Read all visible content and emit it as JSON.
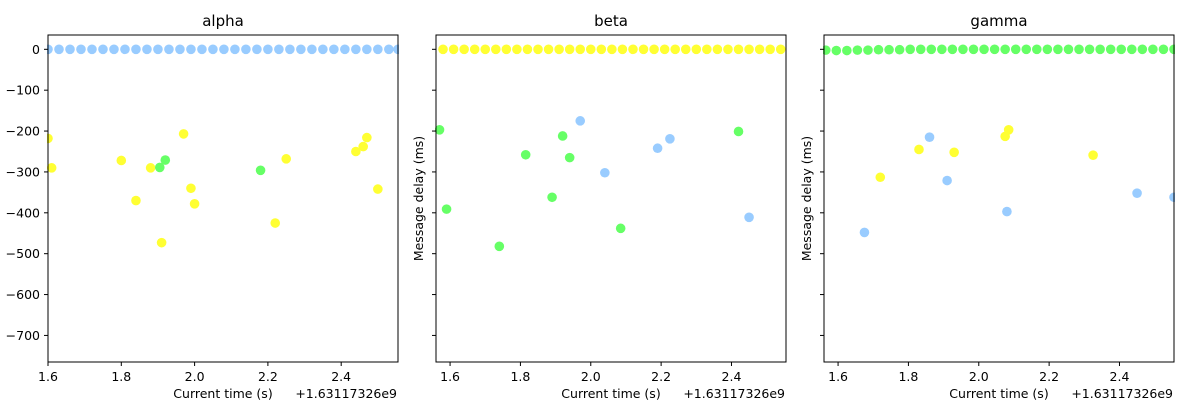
{
  "chart_data": [
    {
      "type": "scatter",
      "title": "alpha",
      "xlabel": "Current time (s)",
      "ylabel": "",
      "x_offset_label": "+1.63117326e9",
      "xlim": [
        1.6,
        2.555
      ],
      "ylim": [
        -765,
        35
      ],
      "xticks": [
        1.6,
        1.8,
        2.0,
        2.2,
        2.4
      ],
      "xtick_labels": [
        "1.6",
        "1.8",
        "2.0",
        "2.2",
        "2.4"
      ],
      "yticks": [
        0,
        -100,
        -200,
        -300,
        -400,
        -500,
        -600,
        -700
      ],
      "ytick_labels": [
        "0",
        "−100",
        "−200",
        "−300",
        "−400",
        "−500",
        "−600",
        "−700"
      ],
      "show_ytick_labels": true,
      "series": [
        {
          "color": "#99ccff",
          "x": [
            1.6,
            1.63,
            1.66,
            1.69,
            1.72,
            1.75,
            1.78,
            1.81,
            1.84,
            1.87,
            1.9,
            1.93,
            1.96,
            1.99,
            2.02,
            2.05,
            2.08,
            2.11,
            2.14,
            2.17,
            2.2,
            2.23,
            2.26,
            2.29,
            2.32,
            2.35,
            2.38,
            2.41,
            2.44,
            2.47,
            2.5,
            2.53,
            2.555
          ],
          "y": [
            0,
            0,
            0,
            0,
            0,
            0,
            0,
            0,
            0,
            0,
            0,
            0,
            0,
            0,
            0,
            0,
            0,
            0,
            0,
            0,
            0,
            0,
            0,
            0,
            0,
            0,
            0,
            0,
            0,
            0,
            0,
            0,
            0
          ]
        },
        {
          "color": "#ffff33",
          "x": [
            1.6,
            1.61,
            1.8,
            1.84,
            1.88,
            1.91,
            1.97,
            1.99,
            2.0,
            2.22,
            2.25,
            2.44,
            2.46,
            2.47,
            2.5
          ],
          "y": [
            -218,
            -290,
            -272,
            -370,
            -290,
            -473,
            -207,
            -340,
            -378,
            -425,
            -268,
            -250,
            -238,
            -216,
            -342
          ]
        },
        {
          "color": "#66ff66",
          "x": [
            1.905,
            1.92,
            2.18
          ],
          "y": [
            -289,
            -271,
            -296
          ]
        }
      ]
    },
    {
      "type": "scatter",
      "title": "beta",
      "xlabel": "Current time (s)",
      "ylabel": "Message delay (ms)",
      "x_offset_label": "+1.63117326e9",
      "xlim": [
        1.56,
        2.555
      ],
      "ylim": [
        -765,
        35
      ],
      "xticks": [
        1.6,
        1.8,
        2.0,
        2.2,
        2.4
      ],
      "xtick_labels": [
        "1.6",
        "1.8",
        "2.0",
        "2.2",
        "2.4"
      ],
      "yticks": [
        0,
        -100,
        -200,
        -300,
        -400,
        -500,
        -600,
        -700
      ],
      "ytick_labels": [],
      "show_ytick_labels": false,
      "series": [
        {
          "color": "#ffff33",
          "x": [
            1.58,
            1.61,
            1.64,
            1.67,
            1.7,
            1.73,
            1.76,
            1.79,
            1.82,
            1.85,
            1.88,
            1.91,
            1.94,
            1.97,
            2.0,
            2.03,
            2.06,
            2.09,
            2.12,
            2.15,
            2.18,
            2.21,
            2.24,
            2.27,
            2.3,
            2.33,
            2.36,
            2.39,
            2.42,
            2.45,
            2.48,
            2.51,
            2.54
          ],
          "y": [
            0,
            0,
            0,
            0,
            0,
            0,
            0,
            0,
            0,
            0,
            0,
            0,
            0,
            0,
            0,
            0,
            0,
            0,
            0,
            0,
            0,
            0,
            0,
            0,
            0,
            0,
            0,
            0,
            0,
            0,
            0,
            0,
            0
          ]
        },
        {
          "color": "#66ff66",
          "x": [
            1.57,
            1.59,
            1.74,
            1.815,
            1.89,
            1.92,
            1.94,
            2.085,
            2.42
          ],
          "y": [
            -197,
            -391,
            -482,
            -258,
            -362,
            -212,
            -265,
            -438,
            -201
          ]
        },
        {
          "color": "#99ccff",
          "x": [
            1.97,
            2.04,
            2.19,
            2.225,
            2.45
          ],
          "y": [
            -175,
            -302,
            -242,
            -219,
            -411
          ]
        }
      ]
    },
    {
      "type": "scatter",
      "title": "gamma",
      "xlabel": "Current time (s)",
      "ylabel": "Message delay (ms)",
      "x_offset_label": "+1.63117326e9",
      "xlim": [
        1.56,
        2.555
      ],
      "ylim": [
        -765,
        35
      ],
      "xticks": [
        1.6,
        1.8,
        2.0,
        2.2,
        2.4
      ],
      "xtick_labels": [
        "1.6",
        "1.8",
        "2.0",
        "2.2",
        "2.4"
      ],
      "yticks": [
        0,
        -100,
        -200,
        -300,
        -400,
        -500,
        -600,
        -700
      ],
      "ytick_labels": [],
      "show_ytick_labels": false,
      "series": [
        {
          "color": "#66ff66",
          "x": [
            1.565,
            1.595,
            1.625,
            1.655,
            1.685,
            1.715,
            1.745,
            1.775,
            1.805,
            1.835,
            1.865,
            1.895,
            1.925,
            1.955,
            1.985,
            2.015,
            2.045,
            2.075,
            2.105,
            2.135,
            2.165,
            2.195,
            2.225,
            2.255,
            2.285,
            2.315,
            2.345,
            2.375,
            2.405,
            2.435,
            2.465,
            2.495,
            2.525,
            2.555
          ],
          "y": [
            -2,
            -3,
            -3,
            -2,
            -2,
            -1,
            -1,
            -1,
            0,
            0,
            0,
            0,
            0,
            0,
            0,
            0,
            0,
            0,
            0,
            0,
            0,
            0,
            0,
            0,
            0,
            0,
            0,
            0,
            0,
            0,
            0,
            0,
            0,
            0
          ]
        },
        {
          "color": "#ffff33",
          "x": [
            1.72,
            1.83,
            1.93,
            2.075,
            2.085,
            2.325
          ],
          "y": [
            -313,
            -245,
            -252,
            -213,
            -197,
            -259
          ]
        },
        {
          "color": "#99ccff",
          "x": [
            1.675,
            1.86,
            1.91,
            2.08,
            2.45,
            2.555
          ],
          "y": [
            -448,
            -215,
            -321,
            -397,
            -352,
            -362
          ]
        }
      ]
    }
  ]
}
